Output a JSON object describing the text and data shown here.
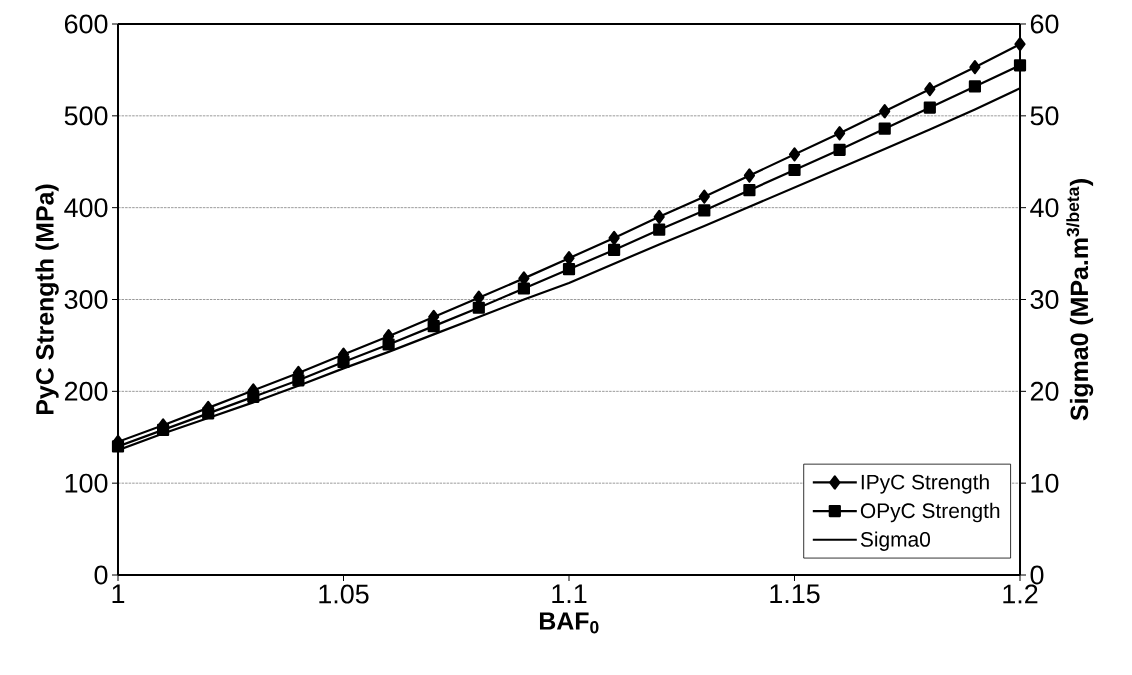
{
  "chart_data": {
    "type": "line",
    "xlabel": "BAF$_{0}$",
    "ylabel": "PyC Strength (MPa)",
    "y2label": "Sigma0 (MPa.m$^{3/beta}$)",
    "x": [
      1.0,
      1.01,
      1.02,
      1.03,
      1.04,
      1.05,
      1.06,
      1.07,
      1.08,
      1.09,
      1.1,
      1.11,
      1.12,
      1.13,
      1.14,
      1.15,
      1.16,
      1.17,
      1.18,
      1.19,
      1.2
    ],
    "series": [
      {
        "name": "IPyC Strength",
        "color": "#000000",
        "marker": "diamond",
        "values": [
          145,
          163,
          182,
          201,
          220,
          240,
          260,
          281,
          302,
          323,
          345,
          367,
          390,
          412,
          435,
          458,
          481,
          505,
          529,
          553,
          578
        ]
      },
      {
        "name": "OPyC Strength",
        "color": "#000000",
        "marker": "square",
        "values": [
          140,
          158,
          176,
          194,
          212,
          232,
          251,
          271,
          291,
          312,
          333,
          354,
          376,
          397,
          419,
          441,
          463,
          486,
          509,
          532,
          555
        ]
      },
      {
        "name": "Sigma0",
        "color": "#000000",
        "marker": "none",
        "axis": "y2",
        "values": [
          13.6,
          15.4,
          17.1,
          18.8,
          20.6,
          22.5,
          24.3,
          26.2,
          28.1,
          30.0,
          31.8,
          33.9,
          36.0,
          38.0,
          40.1,
          42.2,
          44.3,
          46.4,
          48.5,
          50.7,
          53.0
        ]
      }
    ],
    "xlim": [
      1.0,
      1.2
    ],
    "xticks": [
      1,
      1.05,
      1.1,
      1.15,
      1.2
    ],
    "ylim": [
      0,
      600
    ],
    "yticks": [
      0,
      100,
      200,
      300,
      400,
      500,
      600
    ],
    "y2lim": [
      0,
      60
    ],
    "y2ticks": [
      0,
      10,
      20,
      30,
      40,
      50,
      60
    ],
    "grid": "y",
    "legend": "bottom right"
  }
}
